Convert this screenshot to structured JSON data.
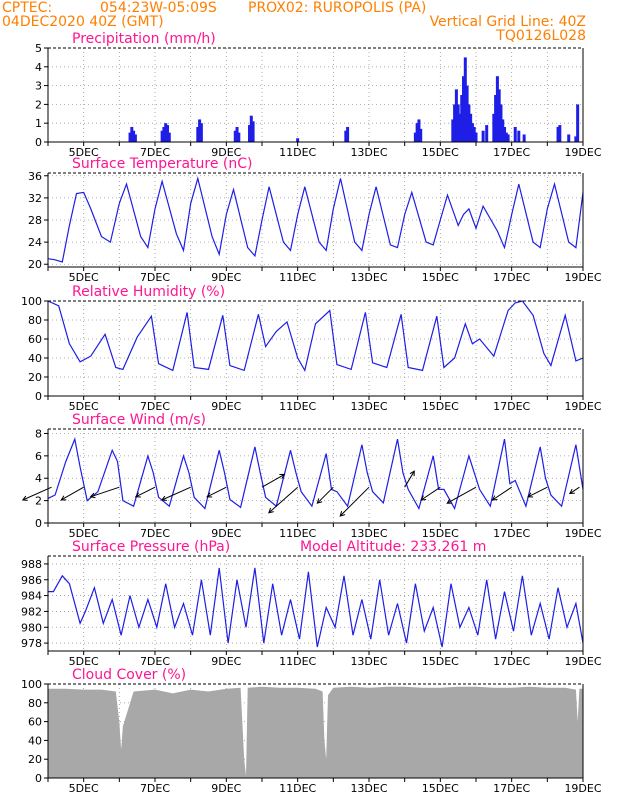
{
  "header": {
    "source": "CPTEC:",
    "coords": "054:23W-05:09S",
    "station": "PROX02: RUROPOLIS (PA)",
    "init_time": "04DEC2020 40Z (GMT)",
    "grid_note": "Vertical Grid Line: 40Z",
    "model_code": "TQ0126L028"
  },
  "colors": {
    "header": "#ff7f00",
    "panel_title": "#ff1493",
    "series": "#1e1ee6",
    "cloud": "#a8a8a8",
    "wind_vector": "#000000"
  },
  "chart_data": [
    {
      "type": "bar",
      "title": "Precipitation (mm/h)",
      "xlabel": "",
      "ylabel": "",
      "x_day_range": [
        4,
        19
      ],
      "ylim": [
        0,
        5
      ],
      "yticks": [
        0,
        1,
        2,
        3,
        4,
        5
      ],
      "xtick_labels": [
        "5DEC",
        "7DEC",
        "9DEC",
        "11DEC",
        "13DEC",
        "15DEC",
        "17DEC",
        "19DEC"
      ],
      "grid": true,
      "x": [
        6.3,
        6.35,
        6.4,
        6.45,
        7.2,
        7.25,
        7.3,
        7.35,
        7.4,
        8.2,
        8.25,
        8.3,
        9.25,
        9.3,
        9.35,
        9.65,
        9.7,
        9.75,
        11.0,
        12.35,
        12.4,
        14.3,
        14.35,
        14.4,
        14.45,
        15.35,
        15.4,
        15.45,
        15.5,
        15.55,
        15.6,
        15.65,
        15.7,
        15.75,
        15.8,
        15.85,
        15.9,
        15.95,
        16.0,
        16.2,
        16.3,
        16.5,
        16.55,
        16.6,
        16.65,
        16.7,
        16.75,
        16.8,
        16.85,
        16.9,
        17.1,
        17.2,
        17.35,
        18.3,
        18.35,
        18.6,
        18.8,
        18.85
      ],
      "values": [
        0.5,
        0.8,
        0.6,
        0.4,
        0.6,
        0.8,
        1.0,
        0.9,
        0.5,
        0.8,
        1.2,
        1.0,
        0.6,
        0.8,
        0.5,
        0.9,
        1.4,
        1.1,
        0.2,
        0.6,
        0.8,
        0.5,
        1.0,
        1.2,
        0.7,
        1.2,
        2.0,
        2.8,
        2.0,
        1.5,
        2.5,
        3.5,
        4.5,
        3.0,
        2.0,
        1.5,
        1.0,
        0.8,
        0.5,
        0.6,
        0.9,
        1.5,
        2.5,
        3.5,
        2.8,
        2.0,
        1.2,
        0.8,
        0.5,
        0.4,
        0.8,
        0.6,
        0.4,
        0.8,
        0.9,
        0.4,
        0.3,
        2.0
      ]
    },
    {
      "type": "line",
      "title": "Surface Temperature (nC)",
      "xlabel": "",
      "ylabel": "",
      "x_day_range": [
        4,
        19
      ],
      "ylim": [
        19.5,
        36.5
      ],
      "yticks": [
        20,
        24,
        28,
        32,
        36
      ],
      "xtick_labels": [
        "5DEC",
        "7DEC",
        "9DEC",
        "11DEC",
        "13DEC",
        "15DEC",
        "17DEC",
        "19DEC"
      ],
      "grid": true,
      "x": [
        4.0,
        4.2,
        4.4,
        4.6,
        4.8,
        5.0,
        5.2,
        5.5,
        5.75,
        6.0,
        6.2,
        6.6,
        6.8,
        7.0,
        7.2,
        7.6,
        7.8,
        8.0,
        8.2,
        8.6,
        8.8,
        9.0,
        9.2,
        9.6,
        9.8,
        10.0,
        10.2,
        10.6,
        10.8,
        11.0,
        11.2,
        11.6,
        11.8,
        12.0,
        12.2,
        12.6,
        12.8,
        13.0,
        13.2,
        13.6,
        13.8,
        14.0,
        14.2,
        14.6,
        14.8,
        15.0,
        15.2,
        15.5,
        15.65,
        15.8,
        16.0,
        16.2,
        16.6,
        16.8,
        17.0,
        17.2,
        17.6,
        17.8,
        18.0,
        18.2,
        18.6,
        18.8,
        19.0
      ],
      "values": [
        21.0,
        20.8,
        20.4,
        27.0,
        32.8,
        33.0,
        30.0,
        25.0,
        24.0,
        31.0,
        34.5,
        25.0,
        23.0,
        30.0,
        35.0,
        25.5,
        22.5,
        31.0,
        35.5,
        25.0,
        21.8,
        29.0,
        33.5,
        23.0,
        21.5,
        28.0,
        34.0,
        24.0,
        22.5,
        29.0,
        34.0,
        24.0,
        22.5,
        30.0,
        35.5,
        24.0,
        22.5,
        29.0,
        34.0,
        23.5,
        23.0,
        29.0,
        33.0,
        24.0,
        23.5,
        28.0,
        32.5,
        27.0,
        29.0,
        30.0,
        26.5,
        30.5,
        26.0,
        23.0,
        29.0,
        34.5,
        24.0,
        23.0,
        30.0,
        34.5,
        24.0,
        23.0,
        33.0
      ]
    },
    {
      "type": "line",
      "title": "Relative Humidity (%)",
      "xlabel": "",
      "ylabel": "",
      "x_day_range": [
        4,
        19
      ],
      "ylim": [
        0,
        100
      ],
      "yticks": [
        0,
        20,
        40,
        60,
        80,
        100
      ],
      "xtick_labels": [
        "5DEC",
        "7DEC",
        "9DEC",
        "11DEC",
        "13DEC",
        "15DEC",
        "17DEC",
        "19DEC"
      ],
      "grid": true,
      "x": [
        4.0,
        4.3,
        4.6,
        4.9,
        5.2,
        5.6,
        5.9,
        6.1,
        6.5,
        6.9,
        7.1,
        7.5,
        7.9,
        8.1,
        8.5,
        8.9,
        9.1,
        9.5,
        9.9,
        10.1,
        10.4,
        10.7,
        11.0,
        11.2,
        11.5,
        11.9,
        12.1,
        12.5,
        12.9,
        13.1,
        13.5,
        13.9,
        14.1,
        14.5,
        14.9,
        15.1,
        15.4,
        15.7,
        15.9,
        16.1,
        16.5,
        16.9,
        17.1,
        17.3,
        17.6,
        17.9,
        18.1,
        18.5,
        18.8,
        19.0
      ],
      "values": [
        100,
        95,
        55,
        36,
        42,
        65,
        30,
        28,
        62,
        84,
        34,
        27,
        88,
        30,
        28,
        85,
        32,
        27,
        86,
        52,
        68,
        78,
        40,
        27,
        76,
        90,
        33,
        28,
        88,
        35,
        30,
        86,
        30,
        27,
        84,
        30,
        40,
        76,
        55,
        60,
        42,
        90,
        98,
        100,
        85,
        45,
        32,
        85,
        37,
        40
      ]
    },
    {
      "type": "line",
      "title": "Surface Wind (m/s)",
      "xlabel": "",
      "ylabel": "",
      "x_day_range": [
        4,
        19
      ],
      "ylim": [
        0,
        8.4
      ],
      "yticks": [
        0,
        2,
        4,
        6,
        8
      ],
      "xtick_labels": [
        "5DEC",
        "7DEC",
        "9DEC",
        "11DEC",
        "13DEC",
        "15DEC",
        "17DEC",
        "19DEC"
      ],
      "grid": true,
      "x": [
        4.0,
        4.2,
        4.5,
        4.75,
        4.9,
        5.1,
        5.4,
        5.8,
        5.95,
        6.1,
        6.4,
        6.8,
        6.95,
        7.1,
        7.4,
        7.8,
        7.95,
        8.1,
        8.4,
        8.8,
        8.95,
        9.1,
        9.4,
        9.8,
        9.95,
        10.1,
        10.4,
        10.8,
        10.95,
        11.1,
        11.4,
        11.8,
        11.95,
        12.1,
        12.4,
        12.8,
        12.95,
        13.1,
        13.4,
        13.8,
        13.95,
        14.1,
        14.4,
        14.8,
        14.95,
        15.1,
        15.4,
        15.8,
        15.95,
        16.1,
        16.4,
        16.8,
        16.95,
        17.1,
        17.4,
        17.8,
        17.95,
        18.1,
        18.4,
        18.8,
        18.95,
        19.0
      ],
      "values": [
        2.2,
        2.5,
        5.5,
        7.5,
        5.0,
        2.0,
        2.8,
        6.5,
        5.5,
        2.0,
        1.5,
        6.0,
        4.5,
        2.3,
        1.5,
        6.0,
        4.5,
        2.3,
        1.3,
        6.5,
        4.5,
        2.1,
        1.4,
        6.8,
        4.5,
        2.3,
        1.5,
        6.5,
        4.5,
        2.8,
        1.5,
        6.2,
        3.0,
        2.8,
        1.5,
        7.0,
        4.5,
        2.8,
        1.8,
        7.5,
        4.5,
        3.0,
        1.3,
        6.0,
        3.0,
        3.0,
        1.3,
        6.0,
        4.5,
        3.0,
        1.5,
        7.5,
        3.5,
        3.8,
        1.5,
        6.8,
        4.0,
        2.5,
        1.5,
        7.0,
        4.0,
        3.0
      ],
      "vectors": {
        "x": [
          4.1,
          5.0,
          6.0,
          7.0,
          8.0,
          9.0,
          10.0,
          11.0,
          12.0,
          13.0,
          14.0,
          15.0,
          16.0,
          17.0,
          18.0,
          18.9
        ],
        "u": [
          -0.9,
          -0.7,
          -0.9,
          -0.6,
          -0.9,
          -0.6,
          0.7,
          -0.9,
          -0.5,
          -0.9,
          0.3,
          -0.6,
          -0.9,
          -0.6,
          -0.6,
          -0.3
        ],
        "v": [
          -0.4,
          -0.4,
          -0.3,
          -0.3,
          -0.4,
          -0.3,
          0.4,
          -0.8,
          -0.5,
          -0.9,
          0.5,
          -0.4,
          -0.5,
          -0.4,
          -0.3,
          -0.2
        ]
      }
    },
    {
      "type": "line",
      "title": "Surface Pressure (hPa)",
      "annotation": "Model Altitude: 233.261 m",
      "xlabel": "",
      "ylabel": "",
      "x_day_range": [
        4,
        19
      ],
      "ylim": [
        977,
        989
      ],
      "yticks": [
        978,
        980,
        982,
        984,
        986,
        988
      ],
      "xtick_labels": [
        "5DEC",
        "7DEC",
        "9DEC",
        "11DEC",
        "13DEC",
        "15DEC",
        "17DEC",
        "19DEC"
      ],
      "grid": true,
      "x": [
        4.0,
        4.15,
        4.4,
        4.6,
        4.9,
        5.05,
        5.3,
        5.55,
        5.8,
        6.05,
        6.3,
        6.55,
        6.8,
        7.05,
        7.3,
        7.55,
        7.8,
        8.05,
        8.3,
        8.55,
        8.8,
        9.05,
        9.3,
        9.55,
        9.8,
        10.05,
        10.3,
        10.55,
        10.8,
        11.05,
        11.3,
        11.55,
        11.8,
        12.05,
        12.3,
        12.55,
        12.8,
        13.05,
        13.3,
        13.55,
        13.8,
        14.05,
        14.3,
        14.55,
        14.8,
        15.05,
        15.3,
        15.55,
        15.8,
        16.05,
        16.3,
        16.55,
        16.8,
        17.05,
        17.3,
        17.55,
        17.8,
        18.05,
        18.3,
        18.55,
        18.8,
        19.0
      ],
      "values": [
        984.5,
        984.5,
        986.5,
        985.5,
        980.5,
        982.0,
        985.0,
        980.5,
        983.5,
        979.0,
        984.0,
        980.0,
        983.5,
        980.0,
        985.5,
        980.0,
        983.0,
        979.0,
        986.0,
        979.0,
        987.5,
        978.0,
        986.0,
        980.0,
        987.5,
        978.0,
        985.5,
        979.0,
        983.5,
        978.5,
        987.0,
        977.5,
        982.5,
        980.0,
        986.5,
        979.0,
        983.5,
        978.5,
        986.0,
        979.0,
        983.0,
        978.0,
        985.5,
        979.5,
        982.5,
        977.5,
        985.5,
        980.0,
        982.5,
        979.0,
        986.0,
        978.5,
        984.5,
        979.5,
        986.5,
        979.0,
        983.0,
        978.5,
        985.0,
        980.0,
        983.0,
        978.0
      ]
    },
    {
      "type": "area",
      "title": "Cloud Cover (%)",
      "xlabel": "",
      "ylabel": "",
      "x_day_range": [
        4,
        19
      ],
      "ylim": [
        0,
        100
      ],
      "yticks": [
        0,
        20,
        40,
        60,
        80,
        100
      ],
      "xtick_labels": [
        "5DEC",
        "7DEC",
        "9DEC",
        "11DEC",
        "13DEC",
        "15DEC",
        "17DEC",
        "19DEC"
      ],
      "grid": true,
      "x": [
        4.0,
        4.5,
        5.0,
        5.5,
        5.9,
        6.0,
        6.05,
        6.1,
        6.4,
        7.0,
        7.5,
        8.0,
        8.5,
        9.0,
        9.4,
        9.5,
        9.55,
        9.6,
        10.0,
        10.5,
        11.0,
        11.5,
        11.7,
        11.75,
        11.8,
        11.85,
        12.0,
        12.5,
        13.0,
        13.5,
        14.0,
        14.5,
        15.0,
        15.5,
        16.0,
        16.5,
        17.0,
        17.5,
        18.0,
        18.5,
        18.8,
        18.85,
        18.9,
        19.0
      ],
      "values": [
        95,
        95,
        94,
        94,
        92,
        60,
        30,
        55,
        92,
        94,
        90,
        94,
        92,
        95,
        96,
        20,
        2,
        96,
        97,
        96,
        96,
        95,
        92,
        40,
        20,
        88,
        96,
        97,
        96,
        97,
        97,
        96,
        96,
        97,
        97,
        96,
        96,
        97,
        96,
        96,
        94,
        60,
        95,
        95
      ]
    }
  ]
}
